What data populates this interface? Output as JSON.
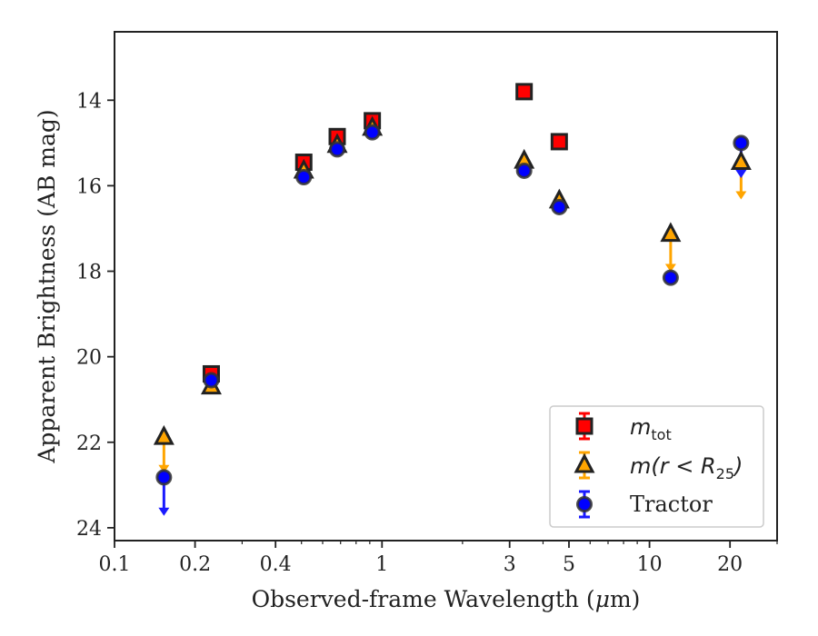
{
  "chart_data": {
    "type": "scatter",
    "xlabel_text": "Observed-frame Wavelength (",
    "xlabel_mu": "μ",
    "xlabel_unit": "m)",
    "ylabel": "Apparent Brightness (AB mag)",
    "xscale": "log",
    "xlim": [
      0.1,
      30
    ],
    "ylim": [
      24.3,
      12.4
    ],
    "y_inverted": true,
    "grid": false,
    "legend_position": "bottom-right",
    "xticks": [
      {
        "value": 0.1,
        "label": "0.1"
      },
      {
        "value": 0.2,
        "label": "0.2"
      },
      {
        "value": 0.4,
        "label": "0.4"
      },
      {
        "value": 1,
        "label": "1"
      },
      {
        "value": 3,
        "label": "3"
      },
      {
        "value": 5,
        "label": "5"
      },
      {
        "value": 10,
        "label": "10"
      },
      {
        "value": 20,
        "label": "20"
      }
    ],
    "yticks": [
      {
        "value": 14,
        "label": "14"
      },
      {
        "value": 16,
        "label": "16"
      },
      {
        "value": 18,
        "label": "18"
      },
      {
        "value": 20,
        "label": "20"
      },
      {
        "value": 22,
        "label": "22"
      },
      {
        "value": 24,
        "label": "24"
      }
    ],
    "series": [
      {
        "key": "mtot",
        "legend_base": "m",
        "legend_sub": "tot",
        "marker": "square",
        "color": "#ff0000",
        "edge_color": "#222222",
        "error_color": "#ff0000",
        "points": [
          {
            "x": 0.23,
            "y": 20.4
          },
          {
            "x": 0.51,
            "y": 15.45
          },
          {
            "x": 0.68,
            "y": 14.85
          },
          {
            "x": 0.92,
            "y": 14.48
          },
          {
            "x": 3.4,
            "y": 13.8
          },
          {
            "x": 4.6,
            "y": 14.97
          }
        ]
      },
      {
        "key": "mr25",
        "legend_base": "m",
        "legend_rest_1": "(r < R",
        "legend_sub": "25",
        "legend_rest_2": ")",
        "marker": "triangle",
        "color": "#222222",
        "face_color": "#ffa500",
        "error_color": "#ffa500",
        "points": [
          {
            "x": 0.153,
            "y": 21.88,
            "upper_limit": true,
            "arrow_to": 22.7
          },
          {
            "x": 0.23,
            "y": 20.7
          },
          {
            "x": 0.51,
            "y": 15.65
          },
          {
            "x": 0.68,
            "y": 15.05
          },
          {
            "x": 0.92,
            "y": 14.65
          },
          {
            "x": 3.4,
            "y": 15.42
          },
          {
            "x": 4.6,
            "y": 16.35
          },
          {
            "x": 12.0,
            "y": 17.13,
            "upper_limit": true,
            "arrow_to": 18.0
          },
          {
            "x": 22.0,
            "y": 15.45,
            "upper_limit": true,
            "arrow_to": 16.3
          }
        ]
      },
      {
        "key": "tractor",
        "legend_base": "Tractor",
        "marker": "circle",
        "color": "#0000ff",
        "edge_color": "#333333",
        "error_color": "#1a1aff",
        "points": [
          {
            "x": 0.153,
            "y": 22.82,
            "upper_limit": true,
            "arrow_to": 23.7
          },
          {
            "x": 0.23,
            "y": 20.55
          },
          {
            "x": 0.51,
            "y": 15.8
          },
          {
            "x": 0.68,
            "y": 15.15
          },
          {
            "x": 0.92,
            "y": 14.75
          },
          {
            "x": 3.4,
            "y": 15.65
          },
          {
            "x": 4.6,
            "y": 16.5
          },
          {
            "x": 12.0,
            "y": 18.15
          },
          {
            "x": 22.0,
            "y": 15.0,
            "upper_limit": true,
            "arrow_to": 15.8
          }
        ]
      }
    ]
  }
}
